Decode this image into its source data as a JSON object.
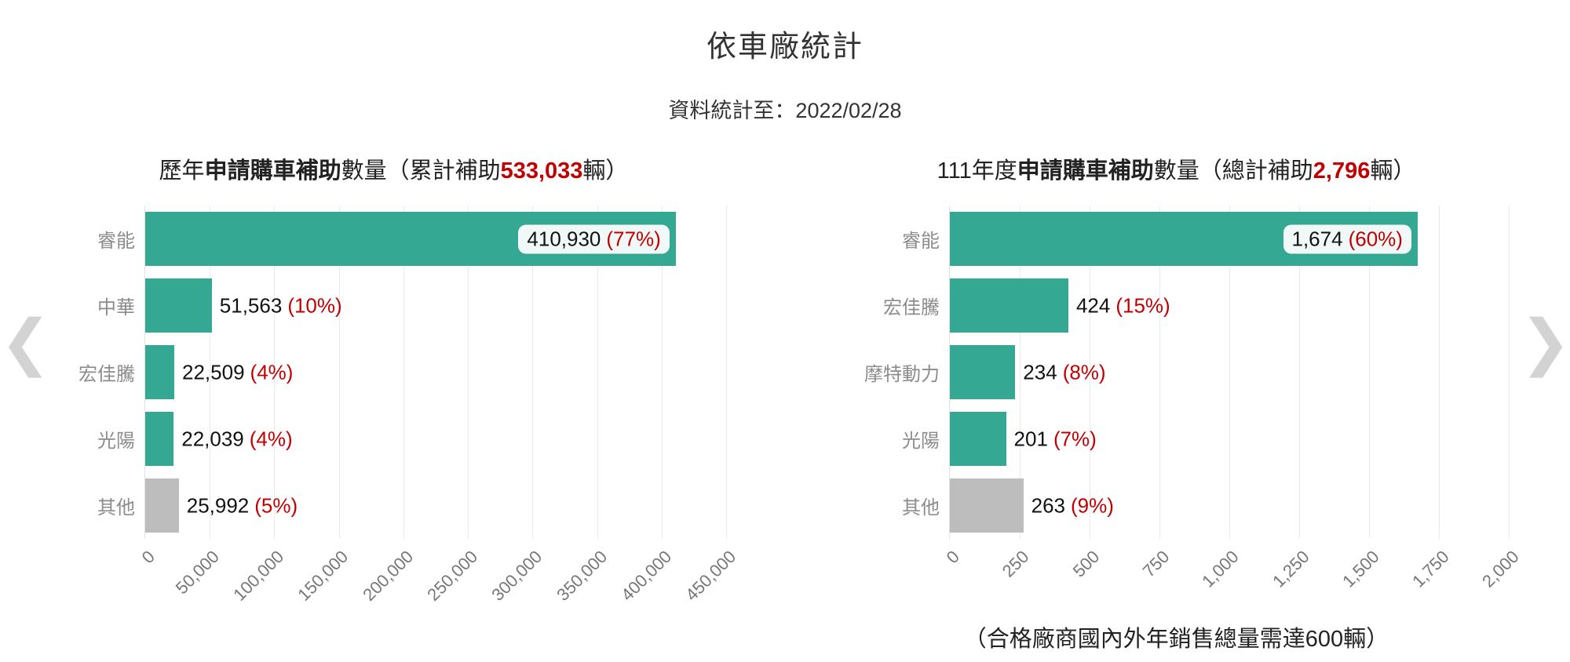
{
  "page": {
    "title": "依車廠統計",
    "subtitle": "資料統計至：2022/02/28"
  },
  "nav": {
    "prev_icon": "❮",
    "next_icon": "❯"
  },
  "colors": {
    "teal": "#35A894",
    "gray": "#BDBDBD",
    "red": "#C00000",
    "grid": "#EAEAEA",
    "chevron": "#D3D3D3"
  },
  "chart_data": [
    {
      "type": "bar",
      "orientation": "horizontal",
      "title_parts": [
        {
          "text": "歷年"
        },
        {
          "text": "申請購車補助",
          "bold": true
        },
        {
          "text": "數量（累計補助"
        },
        {
          "text": "533,033",
          "bold": true,
          "red": true
        },
        {
          "text": "輛）"
        }
      ],
      "categories": [
        "睿能",
        "中華",
        "宏佳騰",
        "光陽",
        "其他"
      ],
      "values": [
        410930,
        51563,
        22509,
        22039,
        25992
      ],
      "value_labels": [
        "410,930",
        "51,563",
        "22,509",
        "22,039",
        "25,992"
      ],
      "pct_labels": [
        "(77%)",
        "(10%)",
        "(4%)",
        "(4%)",
        "(5%)"
      ],
      "bar_colors": [
        "teal",
        "teal",
        "teal",
        "teal",
        "gray"
      ],
      "label_inside": [
        true,
        false,
        false,
        false,
        false
      ],
      "xlim": [
        0,
        450000
      ],
      "tick_values": [
        0,
        50000,
        100000,
        150000,
        200000,
        250000,
        300000,
        350000,
        400000,
        450000
      ],
      "tick_labels": [
        "0",
        "50,000",
        "100,000",
        "150,000",
        "200,000",
        "250,000",
        "300,000",
        "350,000",
        "400,000",
        "450,000"
      ],
      "grid": true,
      "note": ""
    },
    {
      "type": "bar",
      "orientation": "horizontal",
      "title_parts": [
        {
          "text": "111年度"
        },
        {
          "text": "申請購車補助",
          "bold": true
        },
        {
          "text": "數量（總計補助"
        },
        {
          "text": "2,796",
          "bold": true,
          "red": true
        },
        {
          "text": "輛）"
        }
      ],
      "categories": [
        "睿能",
        "宏佳騰",
        "摩特動力",
        "光陽",
        "其他"
      ],
      "values": [
        1674,
        424,
        234,
        201,
        263
      ],
      "value_labels": [
        "1,674",
        "424",
        "234",
        "201",
        "263"
      ],
      "pct_labels": [
        "(60%)",
        "(15%)",
        "(8%)",
        "(7%)",
        "(9%)"
      ],
      "bar_colors": [
        "teal",
        "teal",
        "teal",
        "teal",
        "gray"
      ],
      "label_inside": [
        true,
        false,
        false,
        false,
        false
      ],
      "xlim": [
        0,
        2000
      ],
      "tick_values": [
        0,
        250,
        500,
        750,
        1000,
        1250,
        1500,
        1750,
        2000
      ],
      "tick_labels": [
        "0",
        "250",
        "500",
        "750",
        "1,000",
        "1,250",
        "1,500",
        "1,750",
        "2,000"
      ],
      "grid": true,
      "note": "（合格廠商國內外年銷售總量需達600輛）"
    }
  ]
}
